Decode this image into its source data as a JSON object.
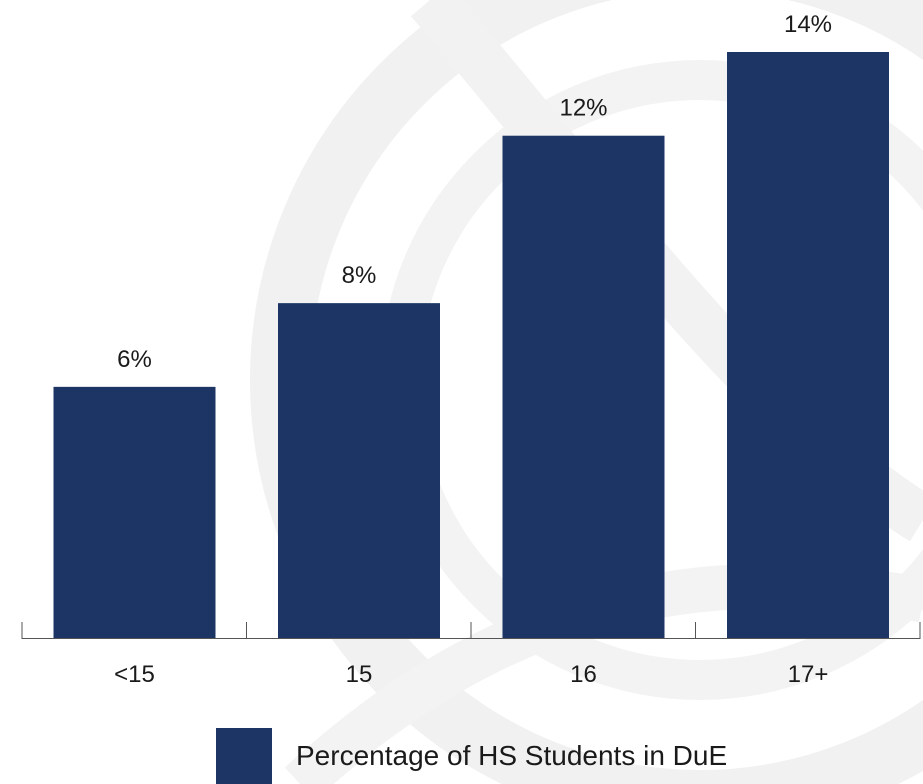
{
  "chart_data": {
    "type": "bar",
    "categories": [
      "<15",
      "15",
      "16",
      "17+"
    ],
    "series": [
      {
        "name": "Percentage of HS Students in DuE",
        "values": [
          6,
          8,
          12,
          14
        ]
      }
    ],
    "value_labels": [
      "6%",
      "8%",
      "12%",
      "14%"
    ],
    "ylim": [
      0,
      14
    ],
    "grid": false,
    "legend_position": "bottom",
    "bar_color": "#1c3564",
    "axis_color": "#555555"
  }
}
